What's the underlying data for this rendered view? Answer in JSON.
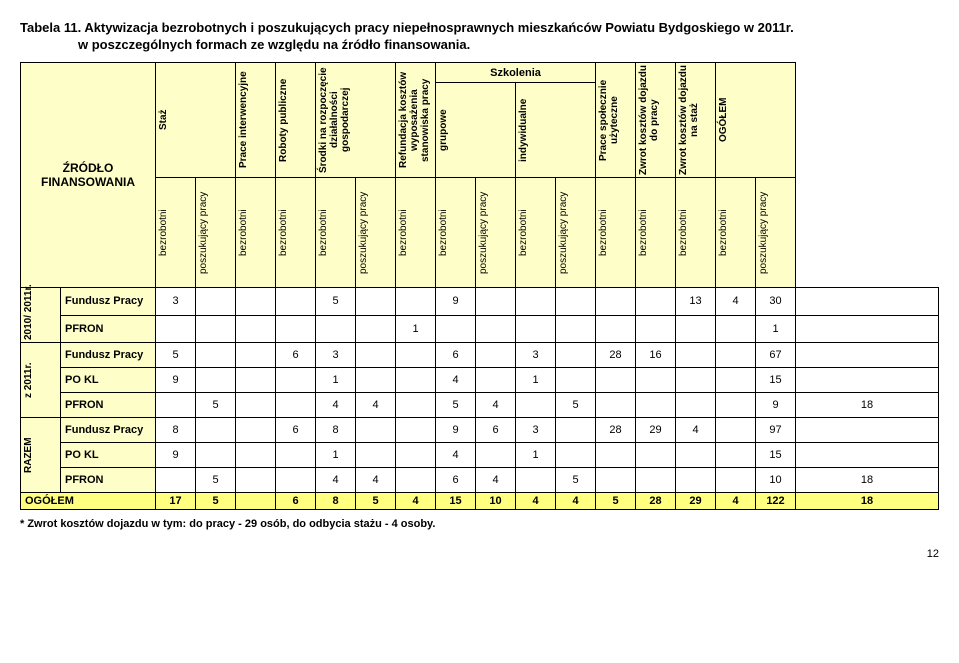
{
  "title": "Tabela 11. Aktywizacja bezrobotnych i poszukujących pracy niepełnosprawnych mieszkańców Powiatu Bydgoskiego w 2011r.",
  "subtitle": "w poszczególnych formach  ze względu na źródło finansowania.",
  "head": {
    "source": "ŹRÓDŁO FINANSOWANIA",
    "c1": "Staż",
    "c2": "Prace interwencyjne",
    "c3": "Roboty publiczne",
    "c4": "Środki na rozpoczęcie działalności gospodarczej",
    "c5": "Refundacja kosztów wyposażenia stanowiska pracy",
    "szk": "Szkolenia",
    "c6": "grupowe",
    "c7": "indywidualne",
    "c8": "Prace społecznie użyteczne",
    "c9": "Zwrot kosztów dojazdu do pracy",
    "c10": "Zwrot kosztów dojazdu na staż",
    "c11": "OGÓŁEM",
    "bez": "bezrobotni",
    "posz": "poszukujący pracy"
  },
  "groups": {
    "g1": "2010/ 2011r.",
    "g2": "z 2011r.",
    "g3": "RAZEM"
  },
  "rows": {
    "r1": {
      "label": "Fundusz Pracy",
      "v": [
        "3",
        "",
        "",
        "",
        "5",
        "",
        "",
        "9",
        "",
        "",
        "",
        "",
        "",
        "13",
        "4",
        "30",
        ""
      ]
    },
    "r2": {
      "label": "PFRON",
      "v": [
        "",
        "",
        "",
        "",
        "",
        "",
        "1",
        "",
        "",
        "",
        "",
        "",
        "",
        "",
        "",
        "1",
        ""
      ]
    },
    "r3": {
      "label": "Fundusz Pracy",
      "v": [
        "5",
        "",
        "",
        "6",
        "3",
        "",
        "",
        "6",
        "",
        "3",
        "",
        "28",
        "16",
        "",
        "",
        "67",
        ""
      ]
    },
    "r4": {
      "label": "PO KL",
      "v": [
        "9",
        "",
        "",
        "",
        "1",
        "",
        "",
        "4",
        "",
        "1",
        "",
        "",
        "",
        "",
        "",
        "15",
        ""
      ]
    },
    "r5": {
      "label": "PFRON",
      "v": [
        "",
        "5",
        "",
        "",
        "4",
        "4",
        "",
        "5",
        "4",
        "",
        "5",
        "",
        "",
        "",
        "",
        "9",
        "18"
      ]
    },
    "r6": {
      "label": "Fundusz Pracy",
      "v": [
        "8",
        "",
        "",
        "6",
        "8",
        "",
        "",
        "9",
        "6",
        "3",
        "",
        "28",
        "29",
        "4",
        "",
        "97",
        ""
      ]
    },
    "r7": {
      "label": "PO KL",
      "v": [
        "9",
        "",
        "",
        "",
        "1",
        "",
        "",
        "4",
        "",
        "1",
        "",
        "",
        "",
        "",
        "",
        "15",
        ""
      ]
    },
    "r8": {
      "label": "PFRON",
      "v": [
        "",
        "5",
        "",
        "",
        "4",
        "4",
        "",
        "6",
        "4",
        "",
        "5",
        "",
        "",
        "",
        "",
        "10",
        "18"
      ]
    }
  },
  "total": {
    "label": "OGÓŁEM",
    "v": [
      "17",
      "5",
      "",
      "6",
      "8",
      "5",
      "4",
      "15",
      "10",
      "4",
      "4",
      "5",
      "28",
      "29",
      "4",
      "122",
      "18"
    ]
  },
  "footnote": "* Zwrot kosztów dojazdu w tym: do pracy - 29 osób, do odbycia stażu - 4 osoby.",
  "pagenum": "12",
  "colors": {
    "beige": "#fefec8",
    "yellow": "#ffff80"
  }
}
